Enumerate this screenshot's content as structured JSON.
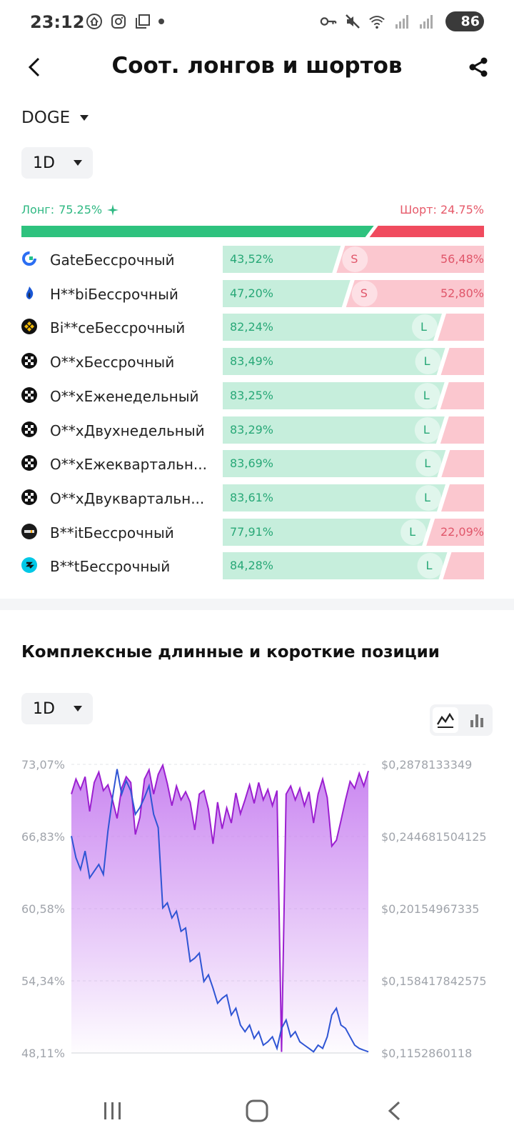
{
  "status": {
    "time": "23:12",
    "battery": "86"
  },
  "header": {
    "title": "Соот. лонгов и шортов"
  },
  "coin": "DOGE",
  "period": "1D",
  "summary": {
    "long_label": "Лонг:",
    "long_value": "75.25%",
    "short_label": "Шорт:",
    "short_value": "24.75%",
    "long_fraction": 0.7525
  },
  "exchanges": [
    {
      "name": "GateБессрочный",
      "icon": "gate-icon",
      "long": 43.52,
      "long_text": "43,52%",
      "short_text": "56,48%",
      "tag": "S"
    },
    {
      "name": "H**biБессрочный",
      "icon": "huobi-icon",
      "long": 47.2,
      "long_text": "47,20%",
      "short_text": "52,80%",
      "tag": "S"
    },
    {
      "name": "Bi**ceБессрочный",
      "icon": "binance-icon",
      "long": 82.24,
      "long_text": "82,24%",
      "short_text": "",
      "tag": "L"
    },
    {
      "name": "O**xБессрочный",
      "icon": "okx-icon",
      "long": 83.49,
      "long_text": "83,49%",
      "short_text": "",
      "tag": "L"
    },
    {
      "name": "O**xЕженедельный",
      "icon": "okx-icon",
      "long": 83.25,
      "long_text": "83,25%",
      "short_text": "",
      "tag": "L"
    },
    {
      "name": "O**xДвухнедельный",
      "icon": "okx-icon",
      "long": 83.29,
      "long_text": "83,29%",
      "short_text": "",
      "tag": "L"
    },
    {
      "name": "O**xЕжеквартальн...",
      "icon": "okx-icon",
      "long": 83.69,
      "long_text": "83,69%",
      "short_text": "",
      "tag": "L"
    },
    {
      "name": "O**xДвуквартальн...",
      "icon": "okx-icon",
      "long": 83.61,
      "long_text": "83,61%",
      "short_text": "",
      "tag": "L"
    },
    {
      "name": "B**itБессрочный",
      "icon": "bybit-icon",
      "long": 77.91,
      "long_text": "77,91%",
      "short_text": "22,09%",
      "tag": "L"
    },
    {
      "name": "B**tБессрочный",
      "icon": "bitget-icon",
      "long": 84.28,
      "long_text": "84,28%",
      "short_text": "",
      "tag": "L"
    }
  ],
  "complex": {
    "title": "Комплексные длинные и короткие позиции",
    "period": "1D"
  },
  "colors": {
    "long": "#2ec27e",
    "short": "#f04b5e",
    "long_light": "#c6eedc",
    "short_light": "#fbc7cf",
    "ratio_line": "#9b1fd0",
    "price_line": "#2f55d4"
  },
  "chart_data": {
    "type": "line",
    "y_left_ticks": [
      "73,07%",
      "66,83%",
      "60,58%",
      "54,34%",
      "48,11%"
    ],
    "y_right_ticks": [
      "$0,2878133349",
      "$0,244681504125",
      "$0,20154967335",
      "$0,158417842575",
      "$0,1152860118"
    ],
    "y_left_range": [
      48.11,
      73.07
    ],
    "y_right_range": [
      0.1152860118,
      0.2878133349
    ],
    "series": [
      {
        "values": [
          70.5,
          71.8,
          70.9,
          72.0,
          69.0,
          71.5,
          72.4,
          70.8,
          71.3,
          70.0,
          68.4,
          71.0,
          72.0,
          71.5,
          67.0,
          68.5,
          71.8,
          72.6,
          70.5,
          72.2,
          73.0,
          71.4,
          69.5,
          71.2,
          70.0,
          70.7,
          69.8,
          67.4,
          70.5,
          70.8,
          69.2,
          66.2,
          69.8,
          67.5,
          69.3,
          68.0,
          70.6,
          68.8,
          70.0,
          71.3,
          69.7,
          71.5,
          70.0,
          70.9,
          69.5,
          70.8,
          48.2,
          70.5,
          71.2,
          70.0,
          71.0,
          69.5,
          70.7,
          68.0,
          70.5,
          71.8,
          70.2,
          66.0,
          66.5,
          68.2,
          70.0,
          71.6,
          71.0,
          72.3,
          71.2,
          72.5
        ]
      },
      {
        "values": [
          0.245,
          0.232,
          0.225,
          0.236,
          0.22,
          0.224,
          0.228,
          0.222,
          0.248,
          0.268,
          0.285,
          0.27,
          0.278,
          0.272,
          0.258,
          0.262,
          0.268,
          0.275,
          0.258,
          0.25,
          0.202,
          0.205,
          0.196,
          0.2,
          0.188,
          0.19,
          0.17,
          0.172,
          0.175,
          0.158,
          0.162,
          0.154,
          0.145,
          0.148,
          0.15,
          0.138,
          0.142,
          0.132,
          0.128,
          0.132,
          0.124,
          0.128,
          0.12,
          0.122,
          0.125,
          0.118,
          0.13,
          0.135,
          0.125,
          0.128,
          0.122,
          0.12,
          0.118,
          0.116,
          0.12,
          0.118,
          0.125,
          0.138,
          0.142,
          0.132,
          0.13,
          0.125,
          0.12,
          0.118,
          0.117,
          0.116
        ]
      }
    ]
  }
}
